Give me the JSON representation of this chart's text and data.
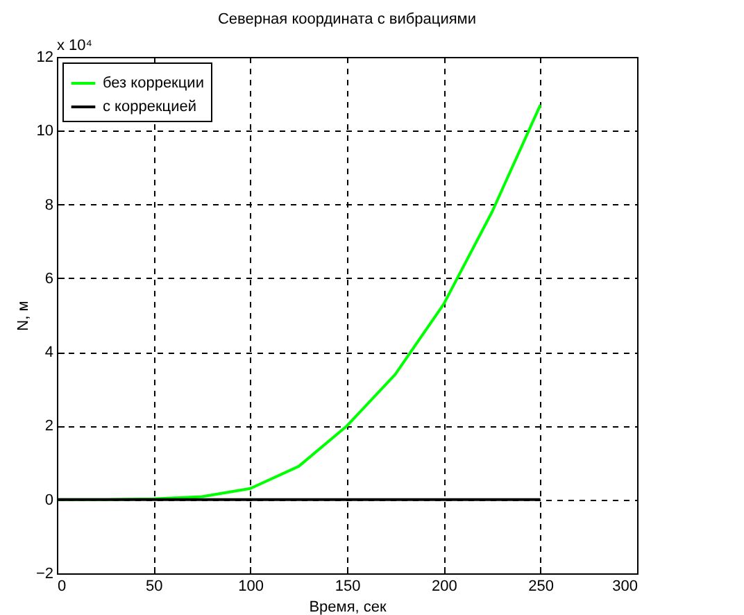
{
  "chart_data": {
    "type": "line",
    "title": "Северная координата с вибрациями",
    "xlabel": "Время, сек",
    "ylabel": "N, м",
    "annotations": [
      "x 10⁴"
    ],
    "x": [
      0,
      25,
      50,
      75,
      100,
      125,
      150,
      175,
      200,
      225,
      250
    ],
    "series": [
      {
        "name": "без коррекции",
        "color": "#00ff00",
        "values": [
          0,
          0,
          0.02,
          0.08,
          0.3,
          0.9,
          2.0,
          3.4,
          5.3,
          7.8,
          10.7
        ]
      },
      {
        "name": "с коррекцией",
        "color": "#000000",
        "values": [
          0,
          0,
          0,
          0,
          0,
          0,
          0,
          0,
          0,
          0,
          0
        ]
      }
    ],
    "xlim": [
      0,
      300
    ],
    "xticks": [
      0,
      50,
      100,
      150,
      200,
      250,
      300
    ],
    "ylim": [
      -2,
      12
    ],
    "yticks": [
      -2,
      0,
      2,
      4,
      6,
      8,
      10,
      12
    ],
    "grid": true,
    "legend": "top left",
    "line_style": "solid",
    "marker": "none"
  }
}
